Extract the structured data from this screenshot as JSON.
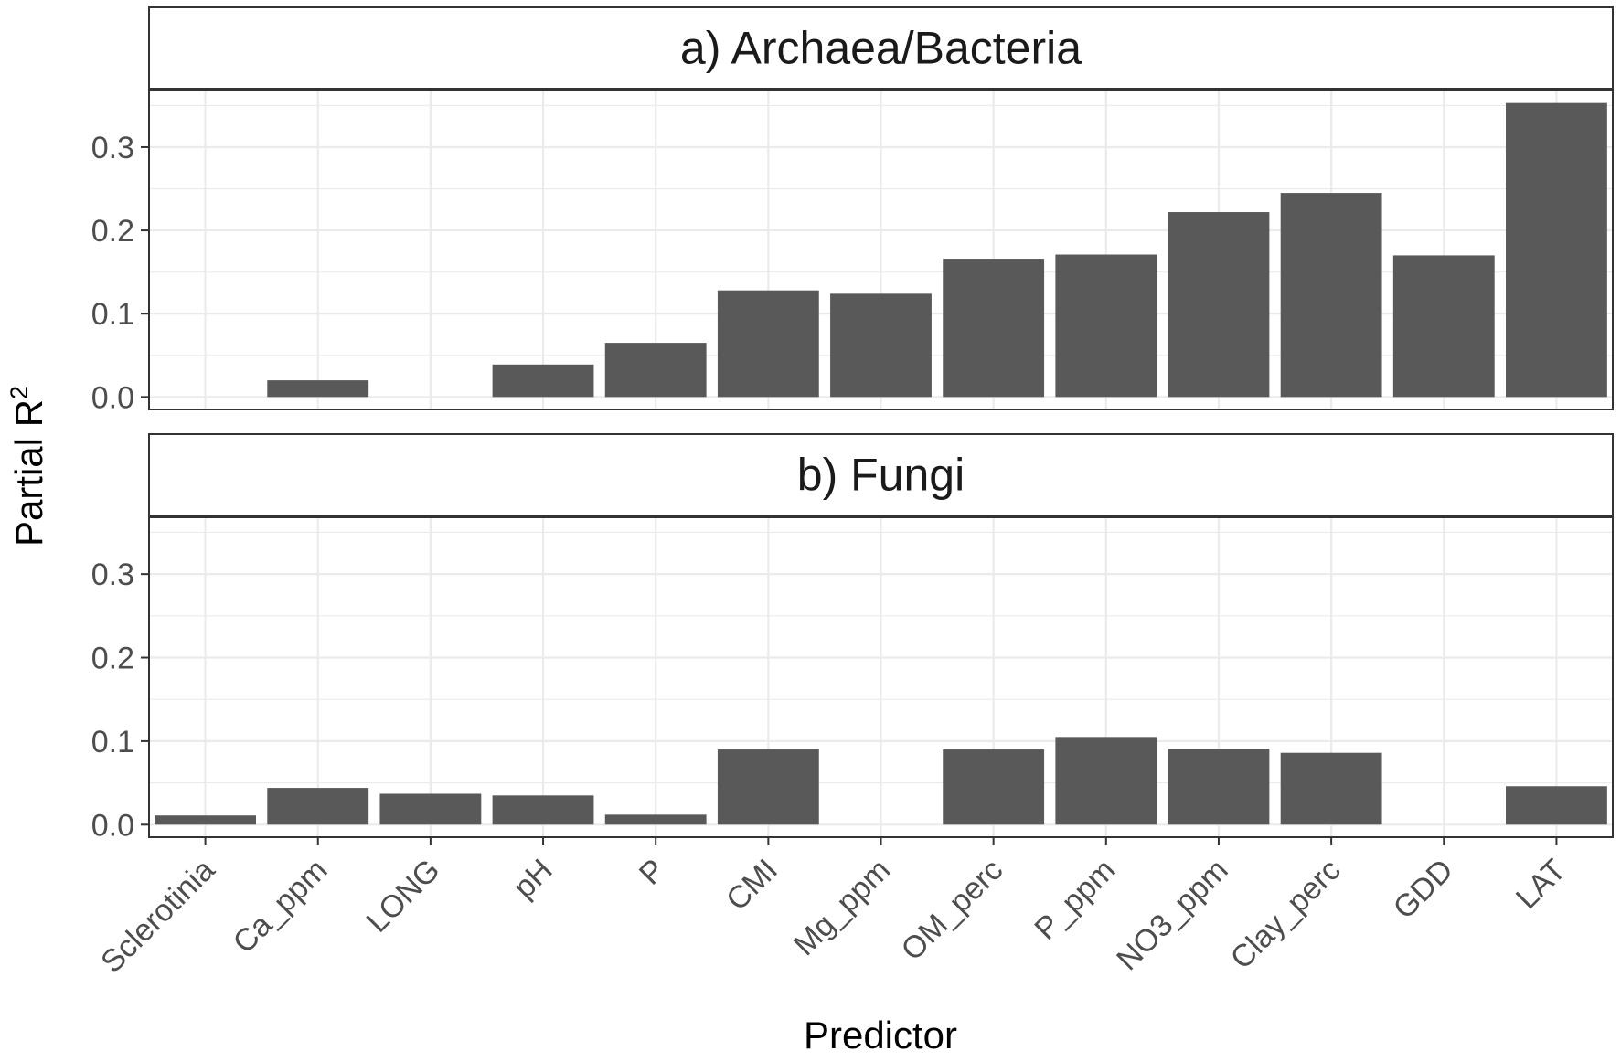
{
  "chart_data": {
    "type": "bar",
    "xlabel": "Predictor",
    "ylabel": "Partial R",
    "ylabel_superscript": "2",
    "categories": [
      "Sclerotinia",
      "Ca_ppm",
      "LONG",
      "pH",
      "P",
      "CMI",
      "Mg_ppm",
      "OM_perc",
      "P_ppm",
      "NO3_ppm",
      "Clay_perc",
      "GDD",
      "LAT"
    ],
    "ylim": [
      -0.015,
      0.368
    ],
    "yticks": [
      0.0,
      0.1,
      0.2,
      0.3
    ],
    "ytick_labels": [
      "0.0",
      "0.1",
      "0.2",
      "0.3"
    ],
    "grid": true,
    "bar_color": "#595959",
    "panels": [
      {
        "title": "a) Archaea/Bacteria",
        "values": [
          0.0,
          0.02,
          0.0,
          0.039,
          0.065,
          0.128,
          0.124,
          0.166,
          0.171,
          0.222,
          0.245,
          0.17,
          0.353
        ]
      },
      {
        "title": "b) Fungi",
        "values": [
          0.011,
          0.044,
          0.037,
          0.035,
          0.012,
          0.09,
          0.0,
          0.09,
          0.105,
          0.091,
          0.086,
          0.0,
          0.046
        ]
      }
    ]
  }
}
